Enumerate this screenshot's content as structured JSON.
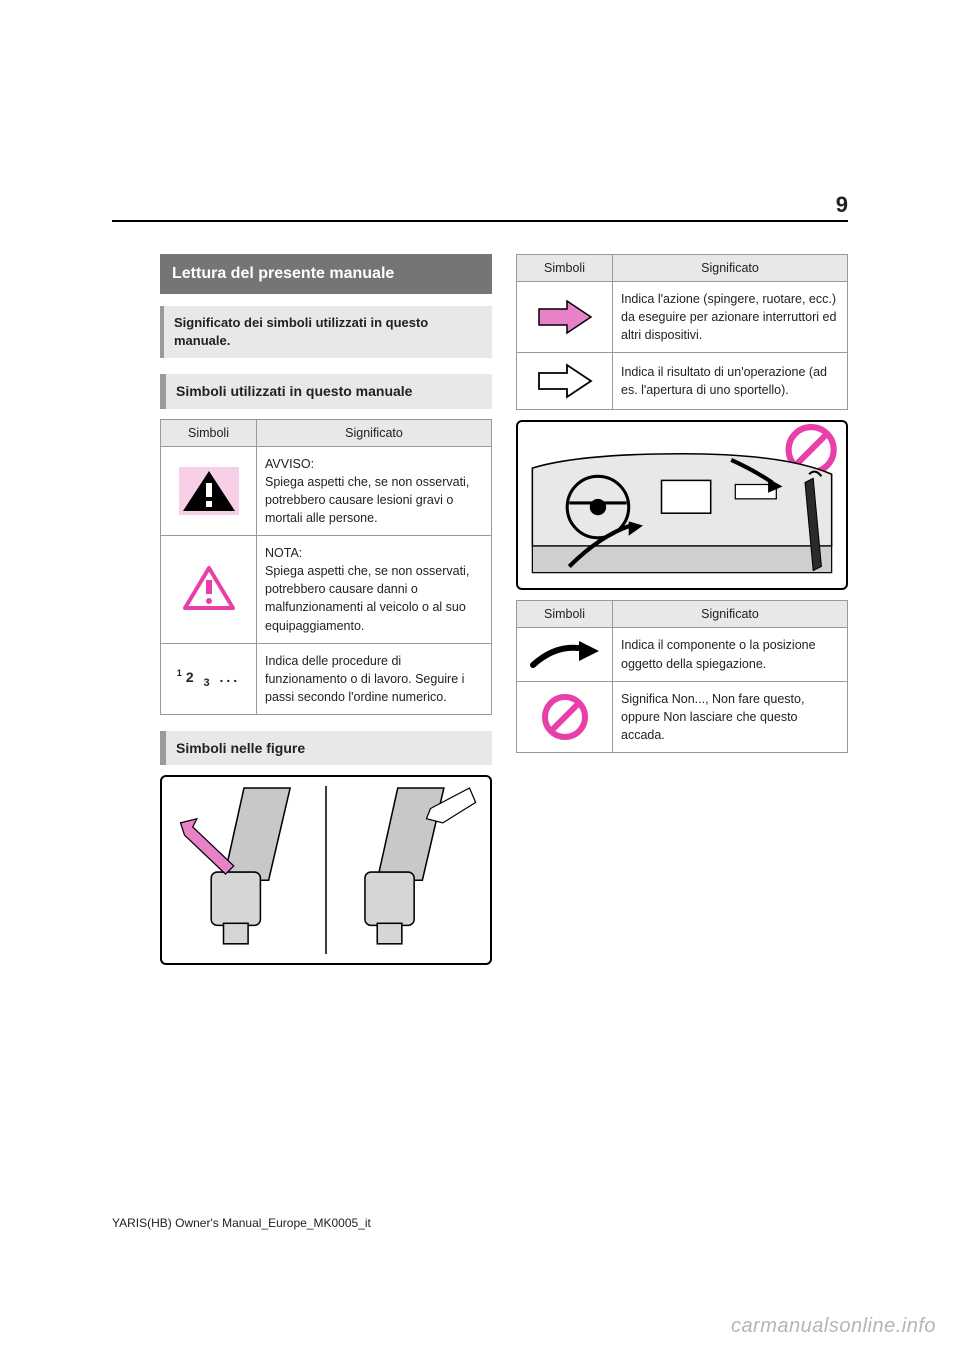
{
  "page_number": "9",
  "footer": "YARIS(HB) Owner's Manual_Europe_MK0005_it",
  "watermark": "carmanualsonline.info",
  "left": {
    "title": "Lettura del presente manuale",
    "intro": "Significato dei simboli utilizzati in questo manuale.",
    "section1": "Simboli utilizzati in questo manuale",
    "table1": {
      "header_symbol": "Simboli",
      "header_meaning": "Significato",
      "rows": [
        {
          "icon": "warning-triangle-filled",
          "bg": "#f7cfe6",
          "stroke": "#000",
          "text": "AVVISO:\nSpiega aspetti che, se non osservati, potrebbero causare lesioni gravi o mortali alle persone."
        },
        {
          "icon": "warning-triangle-outline",
          "bg": "none",
          "stroke": "#e83fa9",
          "text": "NOTA:\nSpiega aspetti che, se non osservati, potrebbero causare danni o malfunzionamenti al veicolo o al suo equipaggiamento."
        },
        {
          "icon": "numbered-steps",
          "bg": "none",
          "stroke": "#000",
          "text": "Indica delle procedure di funzionamento o di lavoro. Seguire i passi secondo l'ordine numerico."
        }
      ]
    },
    "section2": "Simboli nelle figure",
    "illustration1_height": 190
  },
  "right": {
    "table2": {
      "header_symbol": "Simboli",
      "header_meaning": "Significato",
      "rows": [
        {
          "icon": "arrow-filled",
          "fill": "#e882c8",
          "stroke": "#000",
          "text": "Indica l'azione (spingere, ruotare, ecc.) da eseguire per azionare interruttori ed altri dispositivi."
        },
        {
          "icon": "arrow-outline",
          "fill": "none",
          "stroke": "#000",
          "text": "Indica il risultato di un'operazione (ad es. l'apertura di uno sportello)."
        }
      ]
    },
    "illustration2_height": 170,
    "table3": {
      "header_symbol": "Simboli",
      "header_meaning": "Significato",
      "rows": [
        {
          "icon": "swoosh-arrow",
          "fill": "#000",
          "stroke": "#000",
          "text": "Indica il componente o la posizione oggetto della spiegazione."
        },
        {
          "icon": "prohibit",
          "fill": "none",
          "stroke": "#e83fa9",
          "text": "Significa Non..., Non fare questo, oppure Non lasciare che questo accada."
        }
      ]
    }
  }
}
